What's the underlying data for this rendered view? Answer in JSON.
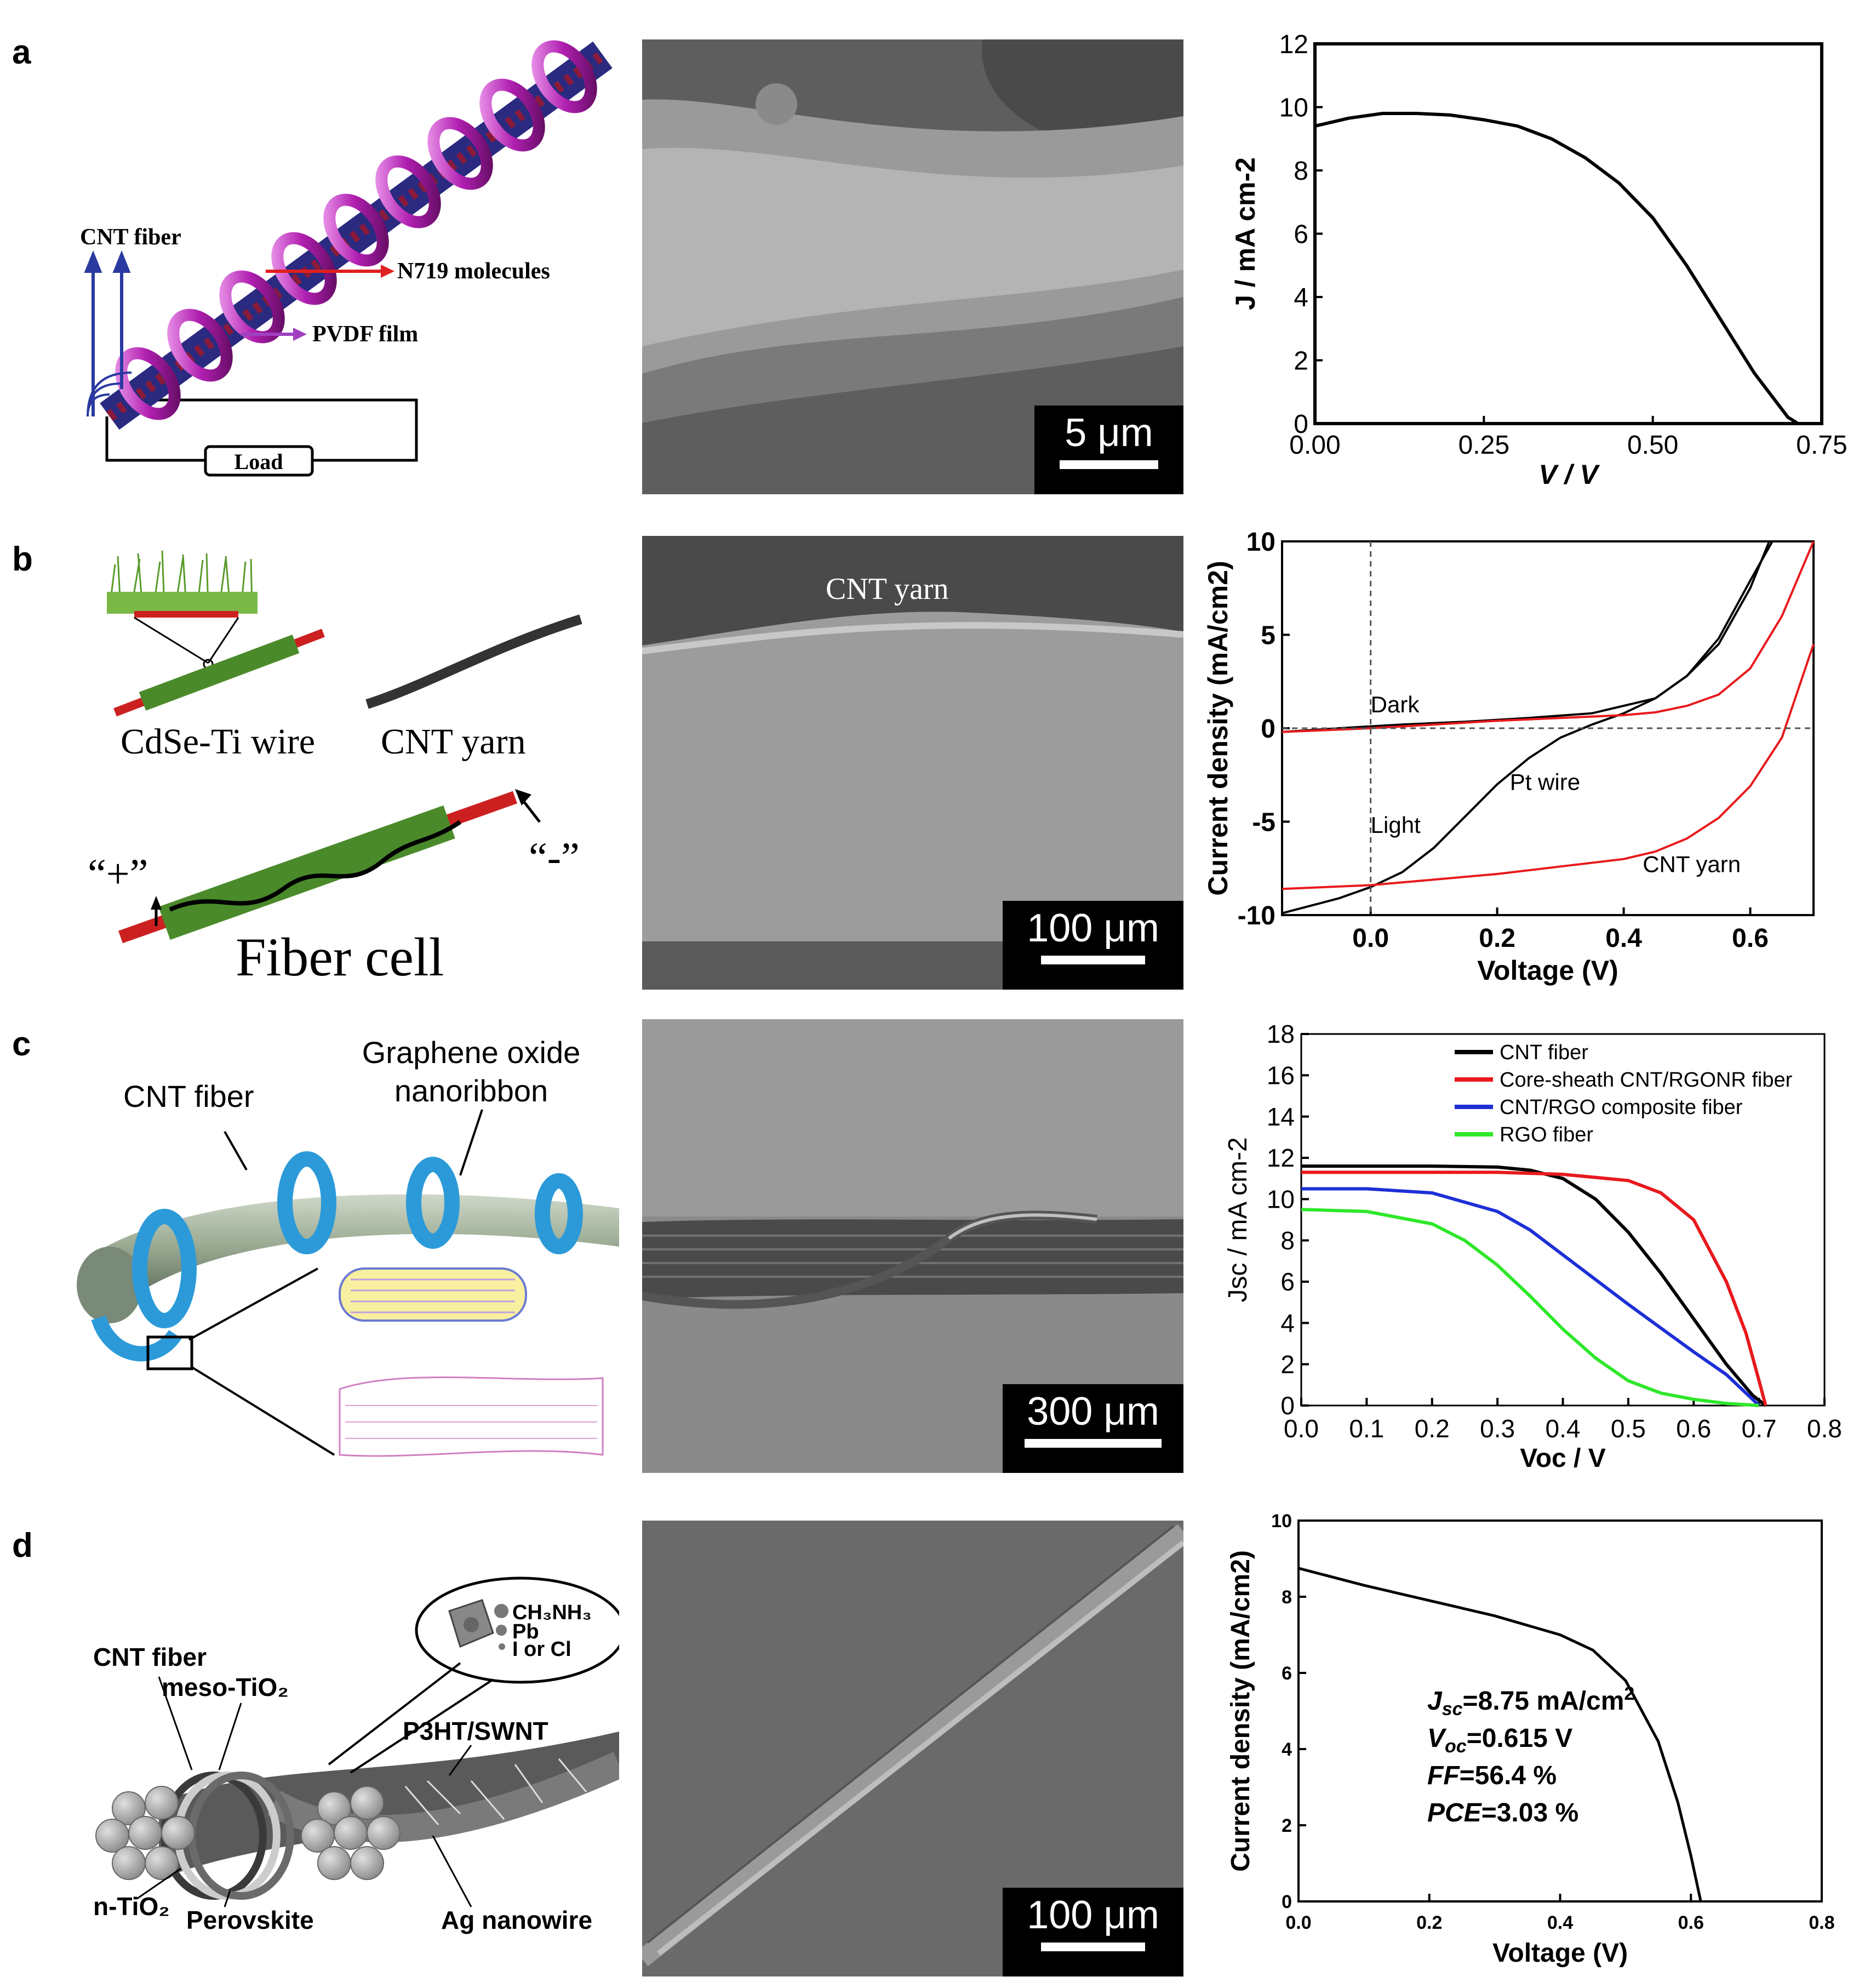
{
  "panels": {
    "a": {
      "letter": "a",
      "schematic": {
        "cnt_fiber": "CNT fiber",
        "n719": "N719 molecules",
        "pvdf": "PVDF film",
        "load": "Load"
      },
      "sem_scale": "5 μm"
    },
    "b": {
      "letter": "b",
      "schematic": {
        "cdse": "CdSe-Ti wire",
        "cnt_yarn": "CNT yarn",
        "plus": "“+”",
        "minus": "“-”",
        "fiber_cell": "Fiber cell"
      },
      "sem_label": "CNT yarn",
      "sem_scale": "100 μm"
    },
    "c": {
      "letter": "c",
      "schematic": {
        "cnt_fiber": "CNT fiber",
        "go_line1": "Graphene oxide",
        "go_line2": "nanoribbon"
      },
      "sem_scale": "300 μm"
    },
    "d": {
      "letter": "d",
      "schematic": {
        "cnt_fiber": "CNT fiber",
        "meso": "meso-TiO₂",
        "ntio2": "n-TiO₂",
        "perovskite": "Perovskite",
        "p3ht": "P3HT/SWNT",
        "ag": "Ag nanowire",
        "ch3nh3": "CH₃NH₃",
        "pb": "Pb",
        "iorcl": "I or Cl"
      },
      "sem_scale": "100 μm"
    }
  },
  "colors": {
    "cnt_black": "#000000",
    "red_series": "#e8191d",
    "blue_series": "#1d2fd6",
    "green_series": "#2ee82a",
    "sem_gray": "#7a7a7a",
    "fiber_blue": "#2c9ad9",
    "fiber_green": "#5a9a2a"
  },
  "chart_data": [
    {
      "type": "line",
      "panel": "a",
      "xlabel": "V / V",
      "ylabel": "J / mA cm-2",
      "xlim": [
        0,
        0.75
      ],
      "ylim": [
        0,
        12
      ],
      "xticks": [
        "0.00",
        "0.25",
        "0.50",
        "0.75"
      ],
      "yticks": [
        "0",
        "2",
        "4",
        "6",
        "8",
        "10",
        "12"
      ],
      "series": [
        {
          "x": [
            0,
            0.05,
            0.1,
            0.15,
            0.2,
            0.25,
            0.3,
            0.35,
            0.4,
            0.45,
            0.5,
            0.55,
            0.6,
            0.65,
            0.7,
            0.715
          ],
          "y": [
            9.4,
            9.65,
            9.8,
            9.8,
            9.75,
            9.6,
            9.4,
            9.0,
            8.4,
            7.6,
            6.5,
            5.0,
            3.3,
            1.6,
            0.2,
            0
          ]
        }
      ]
    },
    {
      "type": "line",
      "panel": "b",
      "xlabel": "Voltage (V)",
      "ylabel": "Current density (mA/cm2)",
      "xlim": [
        -0.14,
        0.7
      ],
      "ylim": [
        -10,
        10
      ],
      "xticks": [
        "0.0",
        "0.2",
        "0.4",
        "0.6"
      ],
      "yticks": [
        "10",
        "5",
        "0",
        "-5",
        "-10"
      ],
      "annotations": [
        "Dark",
        "Light",
        "Pt wire",
        "CNT yarn"
      ],
      "series": [
        {
          "color": "black",
          "x": [
            -0.14,
            -0.05,
            0.05,
            0.15,
            0.25,
            0.35,
            0.45,
            0.5,
            0.55,
            0.6,
            0.63
          ],
          "y": [
            -0.2,
            0.0,
            0.2,
            0.35,
            0.55,
            0.8,
            1.6,
            2.8,
            4.5,
            7.5,
            10
          ]
        },
        {
          "color": "black",
          "x": [
            -0.14,
            -0.05,
            0.0,
            0.05,
            0.1,
            0.15,
            0.2,
            0.25,
            0.3,
            0.35,
            0.4,
            0.45,
            0.5,
            0.55,
            0.6,
            0.635
          ],
          "y": [
            -9.9,
            -9.1,
            -8.5,
            -7.7,
            -6.4,
            -4.7,
            -3.0,
            -1.6,
            -0.5,
            0.2,
            0.8,
            1.6,
            2.8,
            4.8,
            7.9,
            10
          ]
        },
        {
          "color": "red",
          "x": [
            -0.14,
            0.0,
            0.1,
            0.2,
            0.3,
            0.4,
            0.45,
            0.5,
            0.55,
            0.6,
            0.65,
            0.7
          ],
          "y": [
            -0.2,
            0.0,
            0.2,
            0.4,
            0.55,
            0.7,
            0.85,
            1.2,
            1.8,
            3.2,
            6.0,
            10
          ]
        },
        {
          "color": "red",
          "x": [
            -0.14,
            0.0,
            0.1,
            0.2,
            0.3,
            0.4,
            0.45,
            0.5,
            0.55,
            0.6,
            0.65,
            0.7
          ],
          "y": [
            -8.6,
            -8.4,
            -8.1,
            -7.8,
            -7.4,
            -7.0,
            -6.6,
            -5.9,
            -4.8,
            -3.1,
            -0.5,
            4.5
          ]
        }
      ]
    },
    {
      "type": "line",
      "panel": "c",
      "xlabel": "Voc / V",
      "ylabel": "Jsc / mA cm-2",
      "xlim": [
        0,
        0.8
      ],
      "ylim": [
        0,
        18
      ],
      "xticks": [
        "0.0",
        "0.1",
        "0.2",
        "0.3",
        "0.4",
        "0.5",
        "0.6",
        "0.7",
        "0.8"
      ],
      "yticks": [
        "0",
        "2",
        "4",
        "6",
        "8",
        "10",
        "12",
        "14",
        "16",
        "18"
      ],
      "series": [
        {
          "name": "CNT fiber",
          "color": "black",
          "x": [
            0,
            0.1,
            0.2,
            0.3,
            0.35,
            0.4,
            0.45,
            0.5,
            0.55,
            0.6,
            0.65,
            0.69,
            0.71
          ],
          "y": [
            11.6,
            11.6,
            11.6,
            11.55,
            11.4,
            11.0,
            10.0,
            8.4,
            6.4,
            4.2,
            2.0,
            0.5,
            0
          ]
        },
        {
          "name": "Core-sheath CNT/RGONR fiber",
          "color": "red",
          "x": [
            0,
            0.1,
            0.2,
            0.3,
            0.4,
            0.5,
            0.55,
            0.6,
            0.65,
            0.68,
            0.7,
            0.71
          ],
          "y": [
            11.3,
            11.3,
            11.3,
            11.3,
            11.2,
            10.9,
            10.3,
            9.0,
            6.0,
            3.5,
            1.2,
            0
          ]
        },
        {
          "name": "CNT/RGO composite fiber",
          "color": "blue",
          "x": [
            0,
            0.1,
            0.2,
            0.3,
            0.35,
            0.4,
            0.5,
            0.6,
            0.65,
            0.7
          ],
          "y": [
            10.5,
            10.5,
            10.3,
            9.4,
            8.5,
            7.3,
            4.9,
            2.6,
            1.5,
            0
          ]
        },
        {
          "name": "RGO fiber",
          "color": "green",
          "x": [
            0,
            0.1,
            0.2,
            0.25,
            0.3,
            0.35,
            0.4,
            0.45,
            0.5,
            0.55,
            0.6,
            0.65,
            0.7
          ],
          "y": [
            9.5,
            9.4,
            8.8,
            8.0,
            6.8,
            5.3,
            3.7,
            2.3,
            1.2,
            0.6,
            0.3,
            0.1,
            0
          ]
        }
      ]
    },
    {
      "type": "line",
      "panel": "d",
      "xlabel": "Voltage (V)",
      "ylabel": "Current density (mA/cm2)",
      "xlim": [
        0,
        0.8
      ],
      "ylim": [
        0,
        10
      ],
      "xticks": [
        "0.0",
        "0.2",
        "0.4",
        "0.6",
        "0.8"
      ],
      "yticks": [
        "0",
        "2",
        "4",
        "6",
        "8",
        "10"
      ],
      "annotations": {
        "jsc": "=8.75 mA/cm",
        "voc": "=0.615 V",
        "ff": "=56.4 %",
        "pce": "=3.03 %"
      },
      "series": [
        {
          "x": [
            0,
            0.1,
            0.2,
            0.3,
            0.4,
            0.45,
            0.5,
            0.55,
            0.58,
            0.6,
            0.615
          ],
          "y": [
            8.75,
            8.3,
            7.9,
            7.5,
            7.0,
            6.6,
            5.8,
            4.2,
            2.6,
            1.2,
            0
          ]
        }
      ]
    }
  ]
}
